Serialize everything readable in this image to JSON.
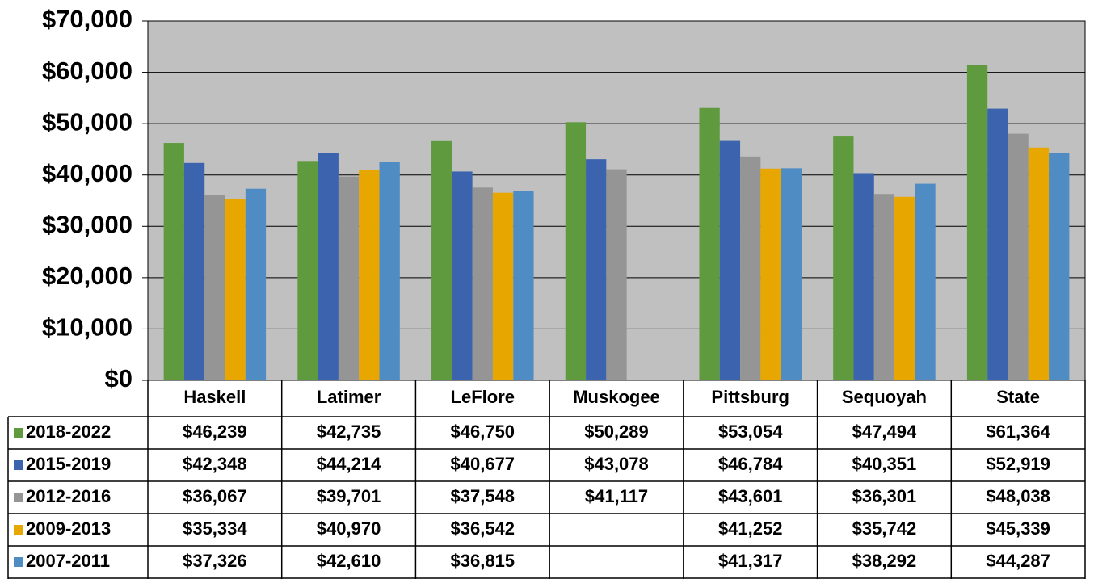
{
  "chart_data": {
    "type": "bar",
    "categories": [
      "Haskell",
      "Latimer",
      "LeFlore",
      "Muskogee",
      "Pittsburg",
      "Sequoyah",
      "State"
    ],
    "series": [
      {
        "name": "2018-2022",
        "color": "#5f9a3f",
        "values": [
          46239,
          42735,
          46750,
          50289,
          53054,
          47494,
          61364
        ],
        "value_labels": [
          "$46,239",
          "$42,735",
          "$46,750",
          "$50,289",
          "$53,054",
          "$47,494",
          "$61,364"
        ]
      },
      {
        "name": "2015-2019",
        "color": "#3c64ae",
        "values": [
          42348,
          44214,
          40677,
          43078,
          46784,
          40351,
          52919
        ],
        "value_labels": [
          "$42,348",
          "$44,214",
          "$40,677",
          "$43,078",
          "$46,784",
          "$40,351",
          "$52,919"
        ]
      },
      {
        "name": "2012-2016",
        "color": "#959595",
        "values": [
          36067,
          39701,
          37548,
          41117,
          43601,
          36301,
          48038
        ],
        "value_labels": [
          "$36,067",
          "$39,701",
          "$37,548",
          "$41,117",
          "$43,601",
          "$36,301",
          "$48,038"
        ]
      },
      {
        "name": "2009-2013",
        "color": "#e8a600",
        "values": [
          35334,
          40970,
          36542,
          null,
          41252,
          35742,
          45339
        ],
        "value_labels": [
          "$35,334",
          "$40,970",
          "$36,542",
          null,
          "$41,252",
          "$35,742",
          "$45,339"
        ]
      },
      {
        "name": "2007-2011",
        "color": "#4f8cc3",
        "values": [
          37326,
          42610,
          36815,
          null,
          41317,
          38292,
          44287
        ],
        "value_labels": [
          "$37,326",
          "$42,610",
          "$36,815",
          null,
          "$41,317",
          "$38,292",
          "$44,287"
        ]
      }
    ],
    "ylim": [
      0,
      70000
    ],
    "yticks": [
      {
        "value": 0,
        "label": "$0"
      },
      {
        "value": 10000,
        "label": "$10,000"
      },
      {
        "value": 20000,
        "label": "$20,000"
      },
      {
        "value": 30000,
        "label": "$30,000"
      },
      {
        "value": 40000,
        "label": "$40,000"
      },
      {
        "value": 50000,
        "label": "$50,000"
      },
      {
        "value": 60000,
        "label": "$60,000"
      },
      {
        "value": 70000,
        "label": "$70,000"
      }
    ],
    "grid": true,
    "plot_background": "#c0c0c0"
  }
}
